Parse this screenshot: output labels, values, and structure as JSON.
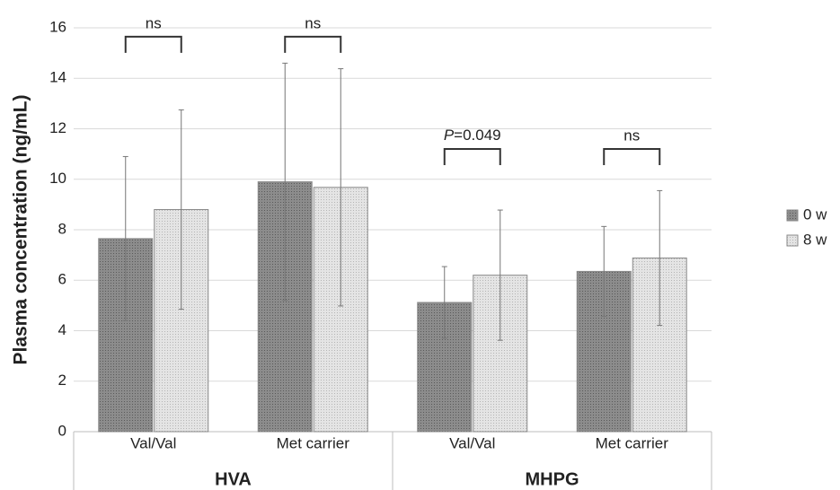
{
  "chart_data": {
    "type": "bar",
    "y_label": "Plasma concentration (ng/mL)",
    "categories": [
      "Val/Val",
      "Met carrier",
      "Val/Val",
      "Met carrier"
    ],
    "groups": [
      "HVA",
      "MHPG"
    ],
    "series": [
      {
        "name": "0 w",
        "color": "#8c8c8c",
        "values": [
          7.65,
          9.9,
          5.12,
          6.35
        ],
        "errors": [
          3.25,
          4.7,
          1.42,
          1.78
        ]
      },
      {
        "name": "8 w",
        "color": "#e4e4e4",
        "values": [
          8.8,
          9.68,
          6.2,
          6.88
        ],
        "errors": [
          3.95,
          4.7,
          2.58,
          2.67
        ]
      }
    ],
    "annotations": [
      {
        "text": "ns",
        "category": 0,
        "y": 15.65
      },
      {
        "text": "ns",
        "category": 1,
        "y": 15.65
      },
      {
        "text": "P=0.049",
        "category": 2,
        "y": 11.2
      },
      {
        "text": "ns",
        "category": 3,
        "y": 11.2
      }
    ],
    "ylim": [
      0,
      16
    ],
    "yticks": [
      0,
      2,
      4,
      6,
      8,
      10,
      12,
      14,
      16
    ],
    "grid": true,
    "legend": "right"
  }
}
